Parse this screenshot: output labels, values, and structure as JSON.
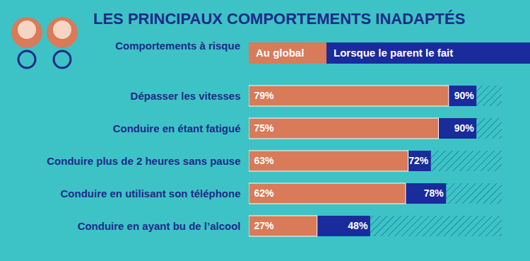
{
  "chart_data": {
    "type": "bar",
    "orientation": "horizontal",
    "title": "LES PRINCIPAUX COMPORTEMENTS INADAPTÉS",
    "legend_title": "Comportements à risque",
    "categories": [
      "Dépasser les vitesses",
      "Conduire en étant fatigué",
      "Conduire plus de 2 heures sans pause",
      "Conduire en utilisant son téléphone",
      "Conduire en ayant bu de l’alcool"
    ],
    "series": [
      {
        "name": "Au global",
        "color": "#D97A58",
        "values": [
          79,
          75,
          63,
          62,
          27
        ],
        "value_labels": [
          "79%",
          "75%",
          "63%",
          "62%",
          "27%"
        ]
      },
      {
        "name": "Lorsque le parent le fait",
        "color": "#1A2B9B",
        "values": [
          90,
          90,
          72,
          78,
          48
        ],
        "value_labels": [
          "90%",
          "90%",
          "72%",
          "78%",
          "48%"
        ]
      }
    ],
    "xlim": [
      0,
      100
    ],
    "xticks": [],
    "tick_labels": "y",
    "data_labels": true,
    "grid": false
  }
}
